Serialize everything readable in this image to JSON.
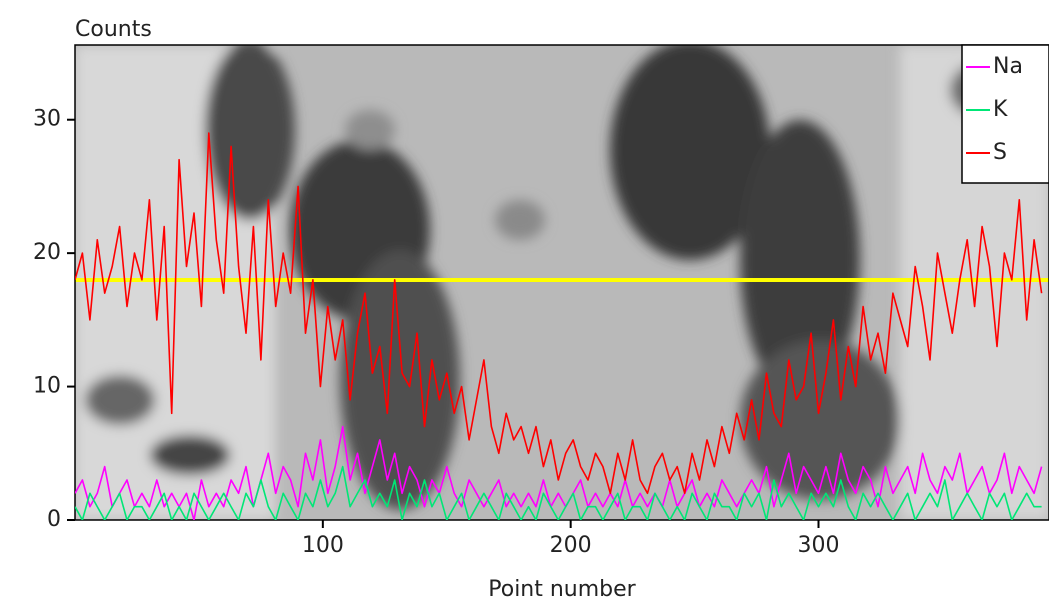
{
  "chart_data": {
    "type": "line",
    "y_label": "Counts",
    "x_label": "Point number",
    "xlim": [
      0,
      393
    ],
    "ylim": [
      0,
      35.6
    ],
    "xticks": [
      100,
      200,
      300
    ],
    "yticks": [
      0,
      10,
      20,
      30
    ],
    "legend": "top-right",
    "x": [
      0,
      3,
      6,
      9,
      12,
      15,
      18,
      21,
      24,
      27,
      30,
      33,
      36,
      39,
      42,
      45,
      48,
      51,
      54,
      57,
      60,
      63,
      66,
      69,
      72,
      75,
      78,
      81,
      84,
      87,
      90,
      93,
      96,
      99,
      102,
      105,
      108,
      111,
      114,
      117,
      120,
      123,
      126,
      129,
      132,
      135,
      138,
      141,
      144,
      147,
      150,
      153,
      156,
      159,
      162,
      165,
      168,
      171,
      174,
      177,
      180,
      183,
      186,
      189,
      192,
      195,
      198,
      201,
      204,
      207,
      210,
      213,
      216,
      219,
      222,
      225,
      228,
      231,
      234,
      237,
      240,
      243,
      246,
      249,
      252,
      255,
      258,
      261,
      264,
      267,
      270,
      273,
      276,
      279,
      282,
      285,
      288,
      291,
      294,
      297,
      300,
      303,
      306,
      309,
      312,
      315,
      318,
      321,
      324,
      327,
      330,
      333,
      336,
      339,
      342,
      345,
      348,
      351,
      354,
      357,
      360,
      363,
      366,
      369,
      372,
      375,
      378,
      381,
      384,
      387,
      390
    ],
    "series": [
      {
        "name": "Na",
        "color": "#ff00ff",
        "values": [
          2,
          3,
          1,
          2,
          4,
          1,
          2,
          3,
          1,
          2,
          1,
          3,
          1,
          2,
          1,
          2,
          0,
          3,
          1,
          2,
          1,
          3,
          2,
          4,
          1,
          3,
          5,
          2,
          4,
          3,
          1,
          5,
          3,
          6,
          2,
          4,
          7,
          3,
          5,
          2,
          4,
          6,
          3,
          5,
          2,
          4,
          3,
          1,
          3,
          2,
          4,
          2,
          1,
          3,
          2,
          1,
          2,
          3,
          1,
          2,
          1,
          2,
          1,
          3,
          1,
          2,
          1,
          2,
          3,
          1,
          2,
          1,
          2,
          1,
          3,
          1,
          2,
          1,
          2,
          1,
          3,
          1,
          2,
          3,
          1,
          2,
          1,
          3,
          2,
          1,
          2,
          3,
          2,
          4,
          1,
          3,
          5,
          2,
          4,
          3,
          2,
          4,
          2,
          5,
          3,
          2,
          4,
          3,
          1,
          4,
          2,
          3,
          4,
          2,
          5,
          3,
          2,
          4,
          3,
          5,
          2,
          3,
          4,
          2,
          3,
          5,
          2,
          4,
          3,
          2,
          4
        ]
      },
      {
        "name": "K",
        "color": "#00e676",
        "values": [
          1,
          0,
          2,
          1,
          0,
          1,
          2,
          0,
          1,
          1,
          0,
          1,
          2,
          0,
          1,
          0,
          2,
          1,
          0,
          1,
          2,
          1,
          0,
          2,
          1,
          3,
          1,
          0,
          2,
          1,
          0,
          2,
          1,
          3,
          1,
          2,
          4,
          1,
          2,
          3,
          1,
          2,
          1,
          3,
          0,
          2,
          1,
          3,
          1,
          2,
          0,
          1,
          2,
          0,
          1,
          2,
          1,
          0,
          2,
          1,
          0,
          1,
          0,
          2,
          1,
          0,
          1,
          2,
          0,
          1,
          1,
          0,
          1,
          2,
          0,
          1,
          1,
          0,
          2,
          1,
          0,
          1,
          0,
          2,
          1,
          0,
          2,
          1,
          1,
          0,
          2,
          1,
          2,
          0,
          3,
          1,
          2,
          1,
          0,
          2,
          1,
          2,
          1,
          3,
          1,
          0,
          2,
          1,
          2,
          1,
          0,
          1,
          2,
          0,
          1,
          2,
          1,
          3,
          0,
          1,
          2,
          1,
          0,
          2,
          1,
          2,
          0,
          1,
          2,
          1,
          1
        ]
      },
      {
        "name": "S",
        "color": "#ff0000",
        "values": [
          18,
          20,
          15,
          21,
          17,
          19,
          22,
          16,
          20,
          18,
          24,
          15,
          22,
          8,
          27,
          19,
          23,
          16,
          29,
          21,
          17,
          28,
          19,
          14,
          22,
          12,
          24,
          16,
          20,
          17,
          25,
          14,
          18,
          10,
          16,
          12,
          15,
          9,
          14,
          17,
          11,
          13,
          8,
          18,
          11,
          10,
          14,
          7,
          12,
          9,
          11,
          8,
          10,
          6,
          9,
          12,
          7,
          5,
          8,
          6,
          7,
          5,
          7,
          4,
          6,
          3,
          5,
          6,
          4,
          3,
          5,
          4,
          2,
          5,
          3,
          6,
          3,
          2,
          4,
          5,
          3,
          4,
          2,
          5,
          3,
          6,
          4,
          7,
          5,
          8,
          6,
          9,
          6,
          11,
          8,
          7,
          12,
          9,
          10,
          14,
          8,
          11,
          15,
          9,
          13,
          10,
          16,
          12,
          14,
          11,
          17,
          15,
          13,
          19,
          16,
          12,
          20,
          17,
          14,
          18,
          21,
          16,
          22,
          19,
          13,
          20,
          18,
          24,
          15,
          21,
          17
        ]
      }
    ]
  }
}
